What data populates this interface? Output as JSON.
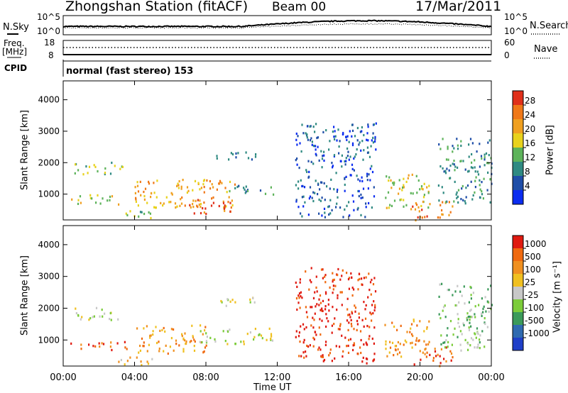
{
  "header": {
    "title": "Zhongshan Station (fitACF)",
    "beam": "Beam 00",
    "date": "17/Mar/2011",
    "mode": "normal (fast stereo) 153"
  },
  "left_labels": {
    "nsky": "N.Sky",
    "freq_top": "Freq.",
    "freq_unit": "[MHz]",
    "cpid": "CPID"
  },
  "right_labels": {
    "nsearch": "N.Search",
    "nave": "Nave"
  },
  "small_axes": {
    "noise_ticks": [
      "10^5",
      "10^0"
    ],
    "freq_ticks": [
      "18",
      "8"
    ],
    "nave_ticks": [
      "60",
      "0"
    ]
  },
  "chart_data": [
    {
      "type": "heatmap",
      "panel": "power",
      "ylabel": "Slant Range [km]",
      "yticks": [
        "4000",
        "3000",
        "2000",
        "1000"
      ],
      "ylim": [
        180,
        4600
      ],
      "colorbar_label": "Power [dB]",
      "colorbar_ticks": [
        "28",
        "24",
        "20",
        "16",
        "12",
        "8",
        "4"
      ],
      "colors": [
        "#0b2cf0",
        "#1f4ea8",
        "#2f8a82",
        "#5db35a",
        "#e8d21c",
        "#f0a020",
        "#f07818",
        "#e0301a"
      ],
      "clusters": [
        {
          "t": [
            0.6,
            3.3
          ],
          "r": [
            1650,
            2050
          ],
          "level": 3
        },
        {
          "t": [
            0.4,
            3.6
          ],
          "r": [
            700,
            1000
          ],
          "level": 4
        },
        {
          "t": [
            3.0,
            5.0
          ],
          "r": [
            200,
            500
          ],
          "level": 3
        },
        {
          "t": [
            4.0,
            9.8
          ],
          "r": [
            600,
            1500
          ],
          "level": 5
        },
        {
          "t": [
            6.5,
            9.5
          ],
          "r": [
            400,
            900
          ],
          "level": 6
        },
        {
          "t": [
            8.5,
            10.8
          ],
          "r": [
            2100,
            2400
          ],
          "level": 2
        },
        {
          "t": [
            9.0,
            11.8
          ],
          "r": [
            1000,
            1300
          ],
          "level": 2
        },
        {
          "t": [
            13.0,
            17.5
          ],
          "r": [
            300,
            3300
          ],
          "level": 1
        },
        {
          "t": [
            18.0,
            20.5
          ],
          "r": [
            500,
            1700
          ],
          "level": 4
        },
        {
          "t": [
            19.5,
            21.8
          ],
          "r": [
            200,
            800
          ],
          "level": 6
        },
        {
          "t": [
            21.0,
            24.0
          ],
          "r": [
            700,
            2800
          ],
          "level": 2
        }
      ]
    },
    {
      "type": "heatmap",
      "panel": "velocity",
      "xlabel": "Time UT",
      "xticks": [
        "00:00",
        "04:00",
        "08:00",
        "12:00",
        "16:00",
        "20:00",
        "00:00"
      ],
      "xlim": [
        0,
        24
      ],
      "ylabel": "Slant Range [km]",
      "yticks": [
        "4000",
        "3000",
        "2000",
        "1000"
      ],
      "ylim": [
        180,
        4600
      ],
      "colorbar_label": "Velocity [m s⁻¹]",
      "colorbar_ticks": [
        "1000",
        "500",
        "100",
        "25",
        "-25",
        "-100",
        "-500",
        "-1000"
      ],
      "colors": [
        "#1f3fc8",
        "#2f6ab0",
        "#3b9a5a",
        "#7ccc3a",
        "#c8c8c8",
        "#f0c020",
        "#f09020",
        "#f06a10",
        "#e01a10"
      ],
      "clusters": [
        {
          "t": [
            0.6,
            3.3
          ],
          "r": [
            1650,
            2050
          ],
          "level": 4
        },
        {
          "t": [
            0.4,
            3.6
          ],
          "r": [
            700,
            1000
          ],
          "level": 7
        },
        {
          "t": [
            3.0,
            5.0
          ],
          "r": [
            200,
            500
          ],
          "level": 5
        },
        {
          "t": [
            4.0,
            8.0
          ],
          "r": [
            600,
            1500
          ],
          "level": 6
        },
        {
          "t": [
            7.5,
            11.8
          ],
          "r": [
            900,
            1400
          ],
          "level": 4
        },
        {
          "t": [
            8.5,
            10.8
          ],
          "r": [
            2100,
            2400
          ],
          "level": 4
        },
        {
          "t": [
            13.0,
            17.5
          ],
          "r": [
            300,
            3300
          ],
          "level": 8
        },
        {
          "t": [
            18.0,
            20.5
          ],
          "r": [
            500,
            1700
          ],
          "level": 6
        },
        {
          "t": [
            19.5,
            21.8
          ],
          "r": [
            200,
            800
          ],
          "level": 7
        },
        {
          "t": [
            21.0,
            24.0
          ],
          "r": [
            700,
            2800
          ],
          "level": 3
        }
      ]
    }
  ]
}
